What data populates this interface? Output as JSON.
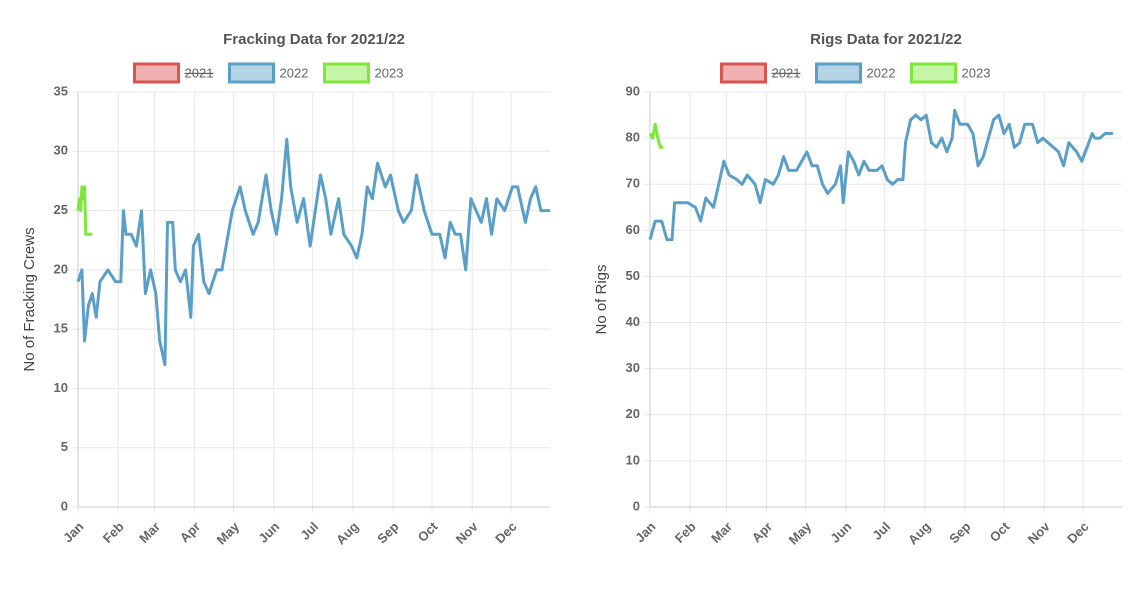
{
  "chart_data": [
    {
      "type": "line",
      "title": "Fracking Data for 2021/22",
      "ylabel": "No of Fracking Crews",
      "xlim": [
        1,
        365
      ],
      "ylim": [
        0,
        35
      ],
      "yticks": [
        0,
        5,
        10,
        15,
        20,
        25,
        30,
        35
      ],
      "grid": true,
      "xticks": [
        {
          "value": 1,
          "label": "Jan"
        },
        {
          "value": 32,
          "label": "Feb"
        },
        {
          "value": 60,
          "label": "Mar"
        },
        {
          "value": 91,
          "label": "Apr"
        },
        {
          "value": 121,
          "label": "May"
        },
        {
          "value": 152,
          "label": "Jun"
        },
        {
          "value": 182,
          "label": "Jul"
        },
        {
          "value": 213,
          "label": "Aug"
        },
        {
          "value": 244,
          "label": "Sep"
        },
        {
          "value": 274,
          "label": "Oct"
        },
        {
          "value": 305,
          "label": "Nov"
        },
        {
          "value": 335,
          "label": "Dec"
        }
      ],
      "series": [
        {
          "name": "2021",
          "color": "#d9534f",
          "hidden": true
        },
        {
          "name": "2022",
          "color": "#5a9fc8",
          "x": [
            1,
            4,
            6,
            9,
            12,
            15,
            18,
            24,
            30,
            34,
            36,
            38,
            42,
            46,
            50,
            53,
            57,
            61,
            64,
            68,
            70,
            74,
            76,
            80,
            84,
            88,
            90,
            94,
            98,
            102,
            108,
            112,
            120,
            126,
            130,
            136,
            140,
            146,
            150,
            154,
            158,
            162,
            165,
            170,
            175,
            180,
            184,
            188,
            192,
            196,
            202,
            206,
            212,
            216,
            220,
            224,
            228,
            232,
            238,
            242,
            248,
            252,
            258,
            262,
            268,
            274,
            280,
            284,
            288,
            292,
            296,
            300,
            304,
            308,
            312,
            316,
            320,
            324,
            330,
            336,
            340,
            346,
            350,
            354,
            358,
            365
          ],
          "values": [
            19,
            20,
            14,
            17,
            18,
            16,
            19,
            20,
            19,
            19,
            25,
            23,
            23,
            22,
            25,
            18,
            20,
            18,
            14,
            12,
            24,
            24,
            20,
            19,
            20,
            16,
            22,
            23,
            19,
            18,
            20,
            20,
            25,
            27,
            25,
            23,
            24,
            28,
            25,
            23,
            26,
            31,
            27,
            24,
            26,
            22,
            25,
            28,
            26,
            23,
            26,
            23,
            22,
            21,
            23,
            27,
            26,
            29,
            27,
            28,
            25,
            24,
            25,
            28,
            25,
            23,
            23,
            21,
            24,
            23,
            23,
            20,
            26,
            25,
            24,
            26,
            23,
            26,
            25,
            27,
            27,
            24,
            26,
            27,
            25,
            25
          ]
        },
        {
          "name": "2023",
          "color": "#7ee83a",
          "x": [
            1,
            2,
            3,
            4,
            5,
            6,
            7,
            12
          ],
          "values": [
            25,
            26,
            25,
            27,
            26,
            27,
            23,
            23
          ]
        }
      ]
    },
    {
      "type": "line",
      "title": "Rigs Data for 2021/22",
      "ylabel": "No of Rigs",
      "xlim": [
        1,
        365
      ],
      "ylim": [
        0,
        90
      ],
      "yticks": [
        0,
        10,
        20,
        30,
        40,
        50,
        60,
        70,
        80,
        90
      ],
      "grid": true,
      "xticks": [
        {
          "value": 1,
          "label": "Jan"
        },
        {
          "value": 32,
          "label": "Feb"
        },
        {
          "value": 60,
          "label": "Mar"
        },
        {
          "value": 91,
          "label": "Apr"
        },
        {
          "value": 121,
          "label": "May"
        },
        {
          "value": 152,
          "label": "Jun"
        },
        {
          "value": 182,
          "label": "Jul"
        },
        {
          "value": 213,
          "label": "Aug"
        },
        {
          "value": 244,
          "label": "Sep"
        },
        {
          "value": 274,
          "label": "Oct"
        },
        {
          "value": 305,
          "label": "Nov"
        },
        {
          "value": 335,
          "label": "Dec"
        }
      ],
      "series": [
        {
          "name": "2021",
          "color": "#d9534f",
          "hidden": true
        },
        {
          "name": "2022",
          "color": "#5a9fc8",
          "x": [
            1,
            5,
            10,
            14,
            18,
            20,
            30,
            36,
            40,
            44,
            50,
            54,
            58,
            62,
            68,
            72,
            76,
            82,
            86,
            90,
            96,
            100,
            104,
            108,
            114,
            118,
            122,
            126,
            130,
            134,
            138,
            144,
            148,
            150,
            154,
            158,
            162,
            166,
            170,
            176,
            180,
            184,
            188,
            192,
            196,
            198,
            202,
            206,
            210,
            214,
            218,
            222,
            226,
            230,
            234,
            236,
            240,
            246,
            250,
            254,
            258,
            262,
            266,
            270,
            274,
            278,
            282,
            286,
            290,
            296,
            300,
            304,
            308,
            312,
            316,
            320,
            324,
            330,
            334,
            338,
            342,
            344,
            348,
            352,
            358
          ],
          "values": [
            58,
            62,
            62,
            58,
            58,
            66,
            66,
            65,
            62,
            67,
            65,
            70,
            75,
            72,
            71,
            70,
            72,
            70,
            66,
            71,
            70,
            72,
            76,
            73,
            73,
            75,
            77,
            74,
            74,
            70,
            68,
            70,
            74,
            66,
            77,
            75,
            72,
            75,
            73,
            73,
            74,
            71,
            70,
            71,
            71,
            79,
            84,
            85,
            84,
            85,
            79,
            78,
            80,
            77,
            80,
            86,
            83,
            83,
            81,
            74,
            76,
            80,
            84,
            85,
            81,
            83,
            78,
            79,
            83,
            83,
            79,
            80,
            79,
            78,
            77,
            74,
            79,
            77,
            75,
            78,
            81,
            80,
            80,
            81,
            81
          ]
        },
        {
          "name": "2023",
          "color": "#7ee83a",
          "x": [
            1,
            3,
            5,
            7,
            9,
            11
          ],
          "values": [
            81,
            80,
            83,
            80,
            78,
            78
          ]
        }
      ]
    }
  ]
}
